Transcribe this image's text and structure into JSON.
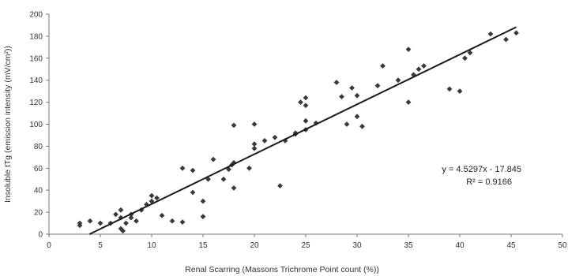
{
  "chart_data": {
    "type": "scatter",
    "xlabel": "Renal Scarring (Massons Trichrome Point count (%))",
    "ylabel": "Insoluble tTg (emission intensity (mV/cm²))",
    "xlim": [
      0,
      50
    ],
    "ylim": [
      0,
      200
    ],
    "x_ticks": [
      0,
      5,
      10,
      15,
      20,
      25,
      30,
      35,
      40,
      45,
      50
    ],
    "y_ticks": [
      0,
      20,
      40,
      60,
      80,
      100,
      120,
      140,
      160,
      180,
      200
    ],
    "grid": false,
    "legend": "none",
    "marker_color": "#3a3a3a",
    "trendline": {
      "slope": 4.5297,
      "intercept": -17.845,
      "x_range": [
        3.94,
        45.5
      ],
      "equation_label": "y = 4.5297x - 17.845",
      "r2_label": "R² = 0.9166",
      "color": "#1a1a1a"
    },
    "points": [
      [
        3,
        8
      ],
      [
        3,
        10
      ],
      [
        4,
        12
      ],
      [
        5,
        10
      ],
      [
        6,
        10
      ],
      [
        6.5,
        18
      ],
      [
        7,
        22
      ],
      [
        7,
        15
      ],
      [
        7,
        5
      ],
      [
        7.2,
        3
      ],
      [
        7.5,
        10
      ],
      [
        8,
        18
      ],
      [
        8,
        15
      ],
      [
        8.5,
        12
      ],
      [
        9,
        22
      ],
      [
        9.5,
        27
      ],
      [
        10,
        30
      ],
      [
        10,
        35
      ],
      [
        10.5,
        33
      ],
      [
        11,
        17
      ],
      [
        12,
        12
      ],
      [
        13,
        11
      ],
      [
        13,
        60
      ],
      [
        14,
        38
      ],
      [
        14,
        58
      ],
      [
        15,
        30
      ],
      [
        15,
        16
      ],
      [
        15.5,
        50
      ],
      [
        16,
        68
      ],
      [
        17,
        50
      ],
      [
        17.5,
        59
      ],
      [
        17.8,
        63
      ],
      [
        18,
        65
      ],
      [
        18,
        99
      ],
      [
        18,
        42
      ],
      [
        19.5,
        60
      ],
      [
        20,
        100
      ],
      [
        20,
        78
      ],
      [
        20,
        82
      ],
      [
        21,
        85
      ],
      [
        22,
        88
      ],
      [
        22.5,
        44
      ],
      [
        23,
        85
      ],
      [
        24,
        91
      ],
      [
        24,
        92
      ],
      [
        24.5,
        120
      ],
      [
        25,
        117
      ],
      [
        25,
        124
      ],
      [
        25,
        103
      ],
      [
        25,
        95
      ],
      [
        26,
        101
      ],
      [
        28,
        138
      ],
      [
        28.5,
        125
      ],
      [
        29,
        100
      ],
      [
        29.5,
        133
      ],
      [
        30,
        107
      ],
      [
        30,
        126
      ],
      [
        30.5,
        98
      ],
      [
        32,
        135
      ],
      [
        32.5,
        153
      ],
      [
        34,
        140
      ],
      [
        35,
        120
      ],
      [
        35,
        168
      ],
      [
        35.5,
        145
      ],
      [
        36,
        150
      ],
      [
        36.5,
        153
      ],
      [
        39,
        132
      ],
      [
        40,
        130
      ],
      [
        40.5,
        160
      ],
      [
        41,
        165
      ],
      [
        43,
        182
      ],
      [
        44.5,
        177
      ],
      [
        45.5,
        183
      ]
    ]
  }
}
